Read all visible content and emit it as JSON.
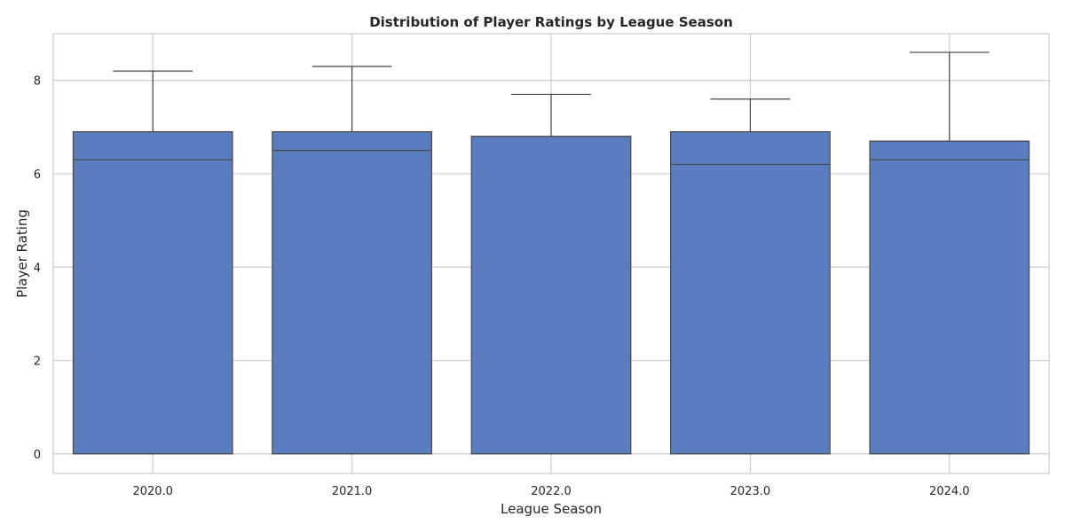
{
  "chart_data": {
    "type": "box",
    "title": "Distribution of Player Ratings by League Season",
    "xlabel": "League Season",
    "ylabel": "Player Rating",
    "categories": [
      "2020.0",
      "2021.0",
      "2022.0",
      "2023.0",
      "2024.0"
    ],
    "boxes": [
      {
        "min": 0,
        "q1": 0,
        "median": 6.3,
        "q3": 6.9,
        "max": 8.2
      },
      {
        "min": 0,
        "q1": 0,
        "median": 6.5,
        "q3": 6.9,
        "max": 8.3
      },
      {
        "min": 0,
        "q1": 0,
        "median": 6.8,
        "q3": 6.8,
        "max": 7.7
      },
      {
        "min": 0,
        "q1": 0,
        "median": 6.2,
        "q3": 6.9,
        "max": 7.6
      },
      {
        "min": 0,
        "q1": 0,
        "median": 6.3,
        "q3": 6.7,
        "max": 8.6
      }
    ],
    "ylim": [
      -0.42,
      9.0
    ],
    "yticks": [
      0,
      2,
      4,
      6,
      8
    ],
    "grid": true,
    "colors": {
      "box_fill": "#5a7dbf",
      "box_edge": "#474747",
      "grid": "#cccccc",
      "frame": "#cccccc"
    }
  }
}
